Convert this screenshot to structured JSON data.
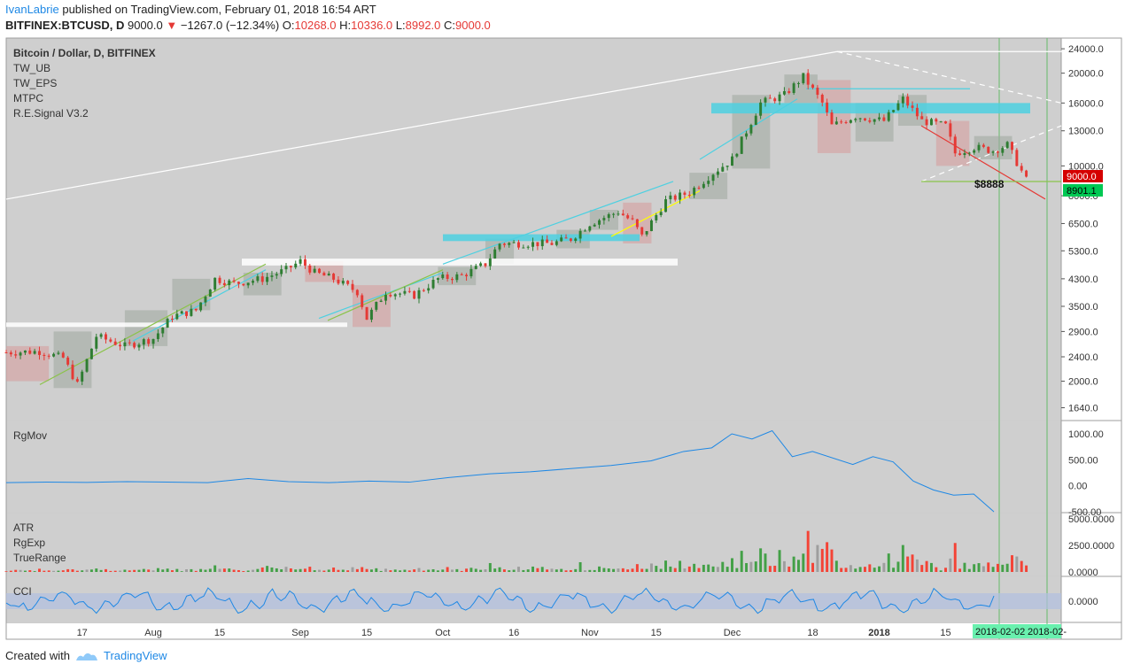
{
  "header": {
    "author": "IvanLabrie",
    "published": "published on TradingView.com, February 01, 2018 16:54 ART",
    "symbol": "BITFINEX:BTCUSD, D",
    "price": "9000.0",
    "change": "−1267.0 (−12.34%)",
    "o_label": "O:",
    "o_value": "10268.0",
    "h_label": "H:",
    "h_value": "10336.0",
    "l_label": "L:",
    "l_value": "8992.0",
    "c_label": "C:",
    "c_value": "9000.0"
  },
  "legend": [
    "Bitcoin / Dollar, D, BITFINEX",
    "TW_UB",
    "TW_EPS",
    "MTPC",
    "R.E.Signal V3.2"
  ],
  "price_badges": {
    "last": "9000.0",
    "second": "8901.1",
    "annotation": "$8888"
  },
  "x_labels": [
    "17",
    "Aug",
    "15",
    "Sep",
    "15",
    "Oct",
    "16",
    "Nov",
    "15",
    "Dec",
    "18",
    "2018",
    "15"
  ],
  "x_badges": [
    "2018-02-02",
    "2018-02-"
  ],
  "colors": {
    "up": "#2e7d32",
    "down": "#e53935",
    "accent": "#1e88e5",
    "badge_red": "#d50000",
    "badge_green": "#00c853",
    "cyan": "#4dd0e1"
  },
  "chart_data": [
    {
      "type": "candlestick",
      "title": "Bitcoin / Dollar, D, BITFINEX",
      "yscale": "log",
      "yticks": [
        24000,
        20000,
        16000,
        13000,
        10000,
        8000,
        6500,
        5300,
        4300,
        3500,
        2900,
        2400,
        2000,
        1640
      ],
      "ytick_labels": [
        "24000.0",
        "20000.0",
        "16000.0",
        "13000.0",
        "10000.0",
        "8000.0",
        "6500.0",
        "5300.0",
        "4300.0",
        "3500.0",
        "2900.0",
        "2400.0",
        "2000.0",
        "1640.0"
      ],
      "ylim": [
        1500,
        26000
      ],
      "x_range": [
        "2017-07-01",
        "2018-02-05"
      ],
      "close_path": [
        [
          "2017-07-01",
          2480
        ],
        [
          "2017-07-08",
          2500
        ],
        [
          "2017-07-13",
          2380
        ],
        [
          "2017-07-16",
          1950
        ],
        [
          "2017-07-20",
          2800
        ],
        [
          "2017-07-26",
          2600
        ],
        [
          "2017-08-01",
          2750
        ],
        [
          "2017-08-05",
          3250
        ],
        [
          "2017-08-10",
          3400
        ],
        [
          "2017-08-14",
          4300
        ],
        [
          "2017-08-18",
          4150
        ],
        [
          "2017-08-24",
          4300
        ],
        [
          "2017-08-29",
          4600
        ],
        [
          "2017-09-01",
          4900
        ],
        [
          "2017-09-04",
          4500
        ],
        [
          "2017-09-08",
          4300
        ],
        [
          "2017-09-13",
          3900
        ],
        [
          "2017-09-15",
          3200
        ],
        [
          "2017-09-19",
          3900
        ],
        [
          "2017-09-25",
          3800
        ],
        [
          "2017-09-30",
          4300
        ],
        [
          "2017-10-05",
          4400
        ],
        [
          "2017-10-10",
          4800
        ],
        [
          "2017-10-13",
          5600
        ],
        [
          "2017-10-18",
          5600
        ],
        [
          "2017-10-24",
          5600
        ],
        [
          "2017-10-28",
          5800
        ],
        [
          "2017-11-01",
          6500
        ],
        [
          "2017-11-07",
          7100
        ],
        [
          "2017-11-10",
          6600
        ],
        [
          "2017-11-12",
          5900
        ],
        [
          "2017-11-17",
          7700
        ],
        [
          "2017-11-22",
          8200
        ],
        [
          "2017-11-27",
          9500
        ],
        [
          "2017-12-01",
          10500
        ],
        [
          "2017-12-07",
          16000
        ],
        [
          "2017-12-12",
          17000
        ],
        [
          "2017-12-16",
          19500
        ],
        [
          "2017-12-20",
          16000
        ],
        [
          "2017-12-22",
          13500
        ],
        [
          "2017-12-27",
          14500
        ],
        [
          "2018-01-02",
          14000
        ],
        [
          "2018-01-06",
          16500
        ],
        [
          "2018-01-10",
          14000
        ],
        [
          "2018-01-15",
          13500
        ],
        [
          "2018-01-17",
          11000
        ],
        [
          "2018-01-21",
          11500
        ],
        [
          "2018-01-25",
          11200
        ],
        [
          "2018-01-28",
          11700
        ],
        [
          "2018-02-01",
          9000
        ]
      ],
      "annotations": [
        "$8888"
      ]
    },
    {
      "type": "line",
      "title": "RgMov",
      "yticks": [
        1000,
        500,
        0,
        -500
      ],
      "ytick_labels": [
        "1000.00",
        "500.00",
        "0.00",
        "-500.00"
      ],
      "series": [
        {
          "name": "RgMov",
          "color": "#1e88e5",
          "values": [
            [
              0,
              60
            ],
            [
              10,
              70
            ],
            [
              20,
              65
            ],
            [
              30,
              80
            ],
            [
              40,
              70
            ],
            [
              50,
              60
            ],
            [
              60,
              140
            ],
            [
              70,
              80
            ],
            [
              80,
              60
            ],
            [
              90,
              90
            ],
            [
              100,
              70
            ],
            [
              110,
              160
            ],
            [
              120,
              230
            ],
            [
              130,
              270
            ],
            [
              140,
              330
            ],
            [
              150,
              390
            ],
            [
              160,
              480
            ],
            [
              168,
              660
            ],
            [
              175,
              730
            ],
            [
              180,
              1000
            ],
            [
              185,
              900
            ],
            [
              190,
              1060
            ],
            [
              195,
              560
            ],
            [
              200,
              660
            ],
            [
              210,
              410
            ],
            [
              215,
              560
            ],
            [
              220,
              460
            ],
            [
              225,
              90
            ],
            [
              230,
              -80
            ],
            [
              235,
              -180
            ],
            [
              240,
              -160
            ],
            [
              245,
              -500
            ]
          ]
        }
      ]
    },
    {
      "type": "bar",
      "title": "ATR",
      "series": [
        {
          "name": "ATR"
        },
        {
          "name": "RgExp"
        },
        {
          "name": "TrueRange"
        }
      ],
      "yticks": [
        5000,
        2500,
        0
      ],
      "ytick_labels": [
        "5000.0000",
        "2500.0000",
        "0.0000"
      ]
    },
    {
      "type": "line",
      "title": "CCI",
      "yticks": [
        0
      ],
      "ytick_labels": [
        "0.0000"
      ],
      "series": [
        {
          "name": "CCI",
          "color": "#1e88e5"
        }
      ]
    }
  ],
  "footer": {
    "created_with": "Created with",
    "brand": "TradingView"
  }
}
